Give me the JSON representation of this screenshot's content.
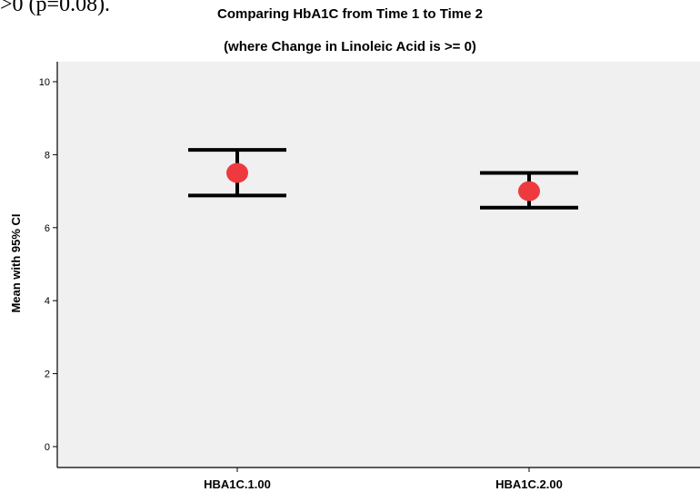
{
  "page_fragment": ">0 (p=0.08).",
  "chart_data": {
    "type": "scatter",
    "title": "Comparing HbA1C from Time 1 to Time 2",
    "subtitle": "(where Change in Linoleic Acid is >= 0)",
    "xlabel": "",
    "ylabel": "Mean with 95% CI",
    "categories": [
      "HBA1C.1.00",
      "HBA1C.2.00"
    ],
    "series": [
      {
        "means": [
          7.5,
          7.0
        ],
        "ci_lower": [
          6.88,
          6.55
        ],
        "ci_upper": [
          8.13,
          7.5
        ]
      }
    ],
    "ylim": [
      0,
      10
    ],
    "yticks": [
      0,
      2,
      4,
      6,
      8,
      10
    ],
    "grid": false,
    "legend": "none",
    "colors": {
      "plot_background": "#f0f0f0",
      "marker": "#ee3a3f",
      "error_bar": "#000000"
    }
  }
}
